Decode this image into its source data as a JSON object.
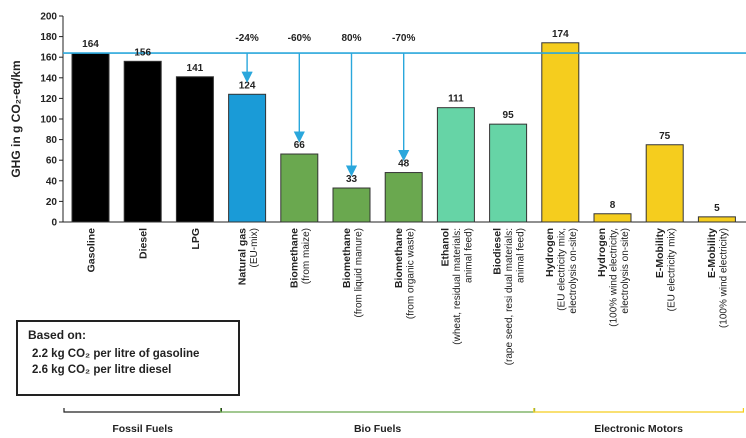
{
  "chart_data": {
    "type": "bar",
    "ylabel": "GHG in g CO₂-eq/km",
    "ylim": [
      0,
      200
    ],
    "yticks": [
      0,
      20,
      40,
      60,
      80,
      100,
      120,
      140,
      160,
      180,
      200
    ],
    "reference_line": 164,
    "categories": [
      {
        "label": "Gasoline",
        "sub": "",
        "value": 164,
        "value_label": "164",
        "color": "#000000"
      },
      {
        "label": "Diesel",
        "sub": "",
        "value": 156,
        "value_label": "156",
        "color": "#000000"
      },
      {
        "label": "LPG",
        "sub": "",
        "value": 141,
        "value_label": "141",
        "color": "#000000"
      },
      {
        "label": "Natural gas",
        "sub": "(EU-mix)",
        "value": 124,
        "value_label": "124",
        "color": "#1a9bd7",
        "change": "-24%"
      },
      {
        "label": "Biomethane",
        "sub": "(from maize)",
        "value": 66,
        "value_label": "66",
        "color": "#6aa84f",
        "change": "-60%"
      },
      {
        "label": "Biomethane",
        "sub": "(from liquid manure)",
        "value": 33,
        "value_label": "33",
        "color": "#6aa84f",
        "change": "80%"
      },
      {
        "label": "Biomethane",
        "sub": "(from organic waste)",
        "value": 48,
        "value_label": "48",
        "color": "#6aa84f",
        "change": "-70%"
      },
      {
        "label": "Ethanol",
        "sub": "(wheat, residual materials:",
        "sub2": "animal feed)",
        "value": 111,
        "value_label": "111",
        "color": "#66d4a6"
      },
      {
        "label": "Biodiesel",
        "sub": "(rape seed, resi dual materials:",
        "sub2": "animal feed)",
        "value": 95,
        "value_label": "95",
        "color": "#66d4a6"
      },
      {
        "label": "Hydrogen",
        "sub": "(EU electricity mix,",
        "sub2": "electrolysis on-site)",
        "value": 174,
        "value_label": "174",
        "color": "#f5cd1e"
      },
      {
        "label": "Hydrogen",
        "sub": "(100% wind electricity,",
        "sub2": "electrolysis on-site)",
        "value": 8,
        "value_label": "8",
        "color": "#f5cd1e"
      },
      {
        "label": "E-Mobility",
        "sub": "(EU electricity mix)",
        "value": 75,
        "value_label": "75",
        "color": "#f5cd1e"
      },
      {
        "label": "E-Mobility",
        "sub": "(100% wind electricity)",
        "value": 5,
        "value_label": "5",
        "color": "#f5cd1e"
      }
    ],
    "groups": [
      {
        "label": "Fossil Fuels",
        "from": 0,
        "to": 2,
        "color": "#222222"
      },
      {
        "label": "Bio Fuels",
        "from": 3,
        "to": 8,
        "color": "#6aa84f"
      },
      {
        "label": "Electronic Motors",
        "from": 9,
        "to": 12,
        "color": "#f5cd1e"
      }
    ],
    "arrow_color": "#2aa7dc",
    "reference_color": "#2aa7dc"
  },
  "note": {
    "title": "Based on:",
    "lines": [
      "2.2 kg CO₂ per litre of gasoline",
      "2.6 kg CO₂ per litre diesel"
    ]
  }
}
